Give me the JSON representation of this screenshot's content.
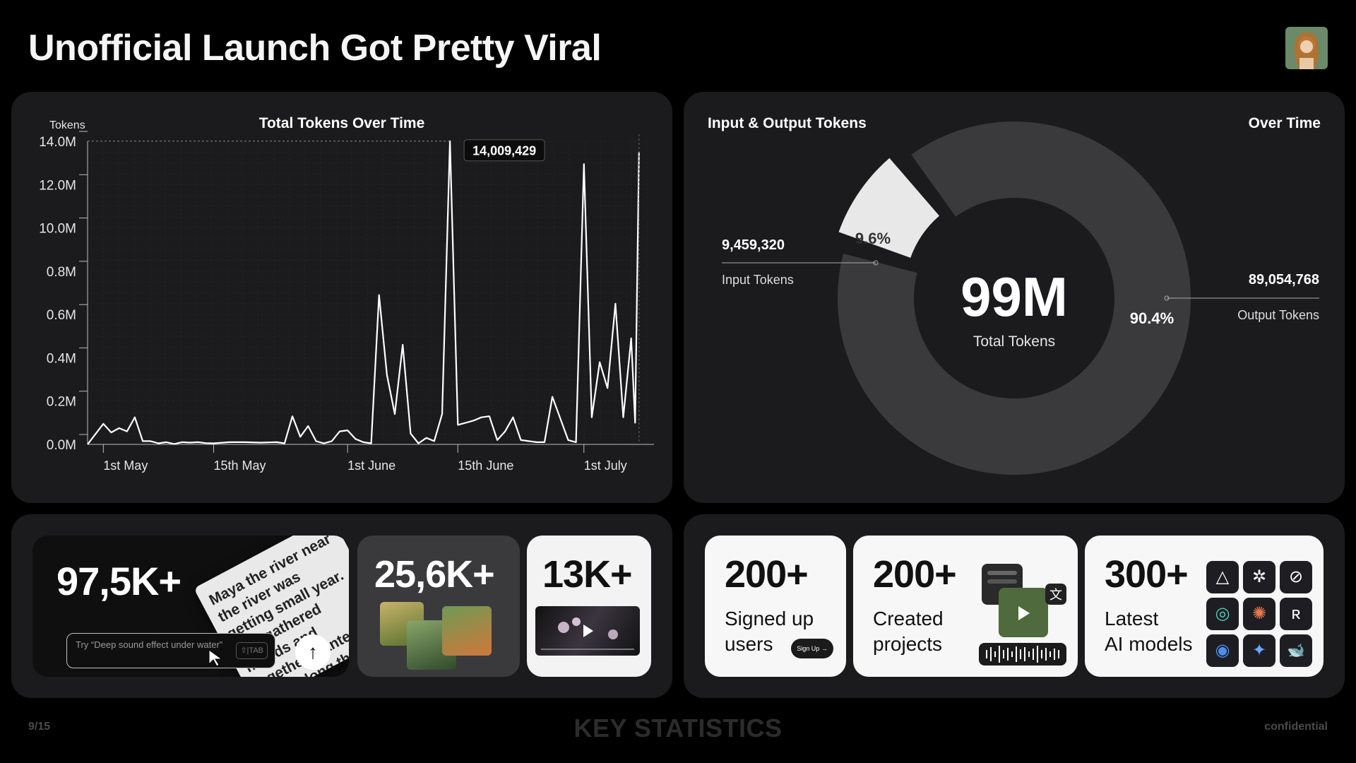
{
  "header": {
    "title": "Unofficial Launch Got Pretty Viral",
    "avatar_icon": "portrait-avatar-icon"
  },
  "line_chart": {
    "chart_data": {
      "type": "line",
      "title": "Total Tokens Over Time",
      "ylabel": "Tokens",
      "xlabel": "",
      "y_tick_labels": [
        "0.0M",
        "0.2M",
        "0.4M",
        "0.6M",
        "0.8M",
        "10.0M",
        "12.0M",
        "14.0M"
      ],
      "x_tick_labels": [
        "1st May",
        "15th May",
        "1st June",
        "15th June",
        "1st July"
      ],
      "x_tick_days": [
        0,
        14,
        31,
        45,
        61
      ],
      "ylim": [
        0,
        14
      ],
      "x_day_range": [
        -2,
        69
      ],
      "peak_label": "14,009,429",
      "series": [
        {
          "points": [
            [
              -2,
              0.0
            ],
            [
              0,
              0.95
            ],
            [
              1,
              0.55
            ],
            [
              2,
              0.75
            ],
            [
              3,
              0.6
            ],
            [
              4,
              1.25
            ],
            [
              5,
              0.15
            ],
            [
              6,
              0.15
            ],
            [
              7,
              0.05
            ],
            [
              8,
              0.1
            ],
            [
              9,
              0.02
            ],
            [
              10,
              0.1
            ],
            [
              11,
              0.08
            ],
            [
              12,
              0.1
            ],
            [
              13,
              0.06
            ],
            [
              14,
              0.05
            ],
            [
              16,
              0.1
            ],
            [
              18,
              0.1
            ],
            [
              20,
              0.08
            ],
            [
              22,
              0.1
            ],
            [
              23,
              0.05
            ],
            [
              24,
              1.3
            ],
            [
              25,
              0.35
            ],
            [
              26,
              0.85
            ],
            [
              27,
              0.15
            ],
            [
              28,
              0.05
            ],
            [
              29,
              0.15
            ],
            [
              30,
              0.6
            ],
            [
              31,
              0.65
            ],
            [
              32,
              0.25
            ],
            [
              33,
              0.1
            ],
            [
              34,
              0.05
            ],
            [
              35,
              6.9
            ],
            [
              36,
              3.2
            ],
            [
              37,
              1.4
            ],
            [
              38,
              4.6
            ],
            [
              39,
              0.5
            ],
            [
              40,
              0.05
            ],
            [
              41,
              0.3
            ],
            [
              42,
              0.15
            ],
            [
              43,
              1.4
            ],
            [
              44,
              14.01
            ],
            [
              45,
              0.9
            ],
            [
              46,
              1.0
            ],
            [
              47,
              1.1
            ],
            [
              48,
              1.25
            ],
            [
              49,
              1.3
            ],
            [
              50,
              0.2
            ],
            [
              51,
              0.6
            ],
            [
              52,
              1.25
            ],
            [
              53,
              0.2
            ],
            [
              54,
              0.15
            ],
            [
              55,
              0.1
            ],
            [
              56,
              0.1
            ],
            [
              57,
              2.2
            ],
            [
              58,
              1.2
            ],
            [
              59,
              0.2
            ],
            [
              60,
              0.1
            ],
            [
              61,
              12.95
            ],
            [
              62,
              1.25
            ],
            [
              63,
              3.8
            ],
            [
              64,
              2.6
            ],
            [
              65,
              6.5
            ],
            [
              66,
              1.25
            ],
            [
              67,
              4.9
            ],
            [
              67.5,
              1.0
            ],
            [
              68,
              13.5
            ]
          ]
        }
      ]
    }
  },
  "donut": {
    "title_left": "Input & Output Tokens",
    "title_right": "Over Time",
    "center_value": "99M",
    "center_label": "Total Tokens",
    "chart_data": {
      "type": "pie",
      "slices": [
        {
          "label": "Input Tokens",
          "value": 9459320,
          "value_text": "9,459,320",
          "percent_text": "9.6%",
          "color": "#e8e8e8"
        },
        {
          "label": "Output Tokens",
          "value": 89054768,
          "value_text": "89,054,768",
          "percent_text": "90.4%",
          "color": "#3a3a3c"
        }
      ]
    }
  },
  "stats_left": {
    "card1": {
      "value": "97,5K+",
      "paper_text": "Maya the river near the river was getting small year. She gathered friends and together planted trees along the bank. Soon",
      "prompt_text": "Try “Deep sound effect under water”",
      "tab_key": "⇧|TAB",
      "send_icon": "arrow-up-icon"
    },
    "card2": {
      "value": "25,6K+"
    },
    "card3": {
      "value": "13K+"
    }
  },
  "stats_right": {
    "card4": {
      "value": "200+",
      "label_1": "Signed up",
      "label_2": "users",
      "pill": "Sign Up →"
    },
    "card5": {
      "value": "200+",
      "label_1": "Created",
      "label_2": "projects"
    },
    "card6": {
      "value": "300+",
      "label_1": "Latest",
      "label_2": "AI models",
      "ai_icons": [
        "△",
        "✲",
        "⊘",
        "◎",
        "✺",
        "ʀ",
        "◉",
        "✦",
        "🐋"
      ]
    }
  },
  "footer": {
    "page": "9/15",
    "section": "KEY STATISTICS",
    "note": "confidential"
  }
}
